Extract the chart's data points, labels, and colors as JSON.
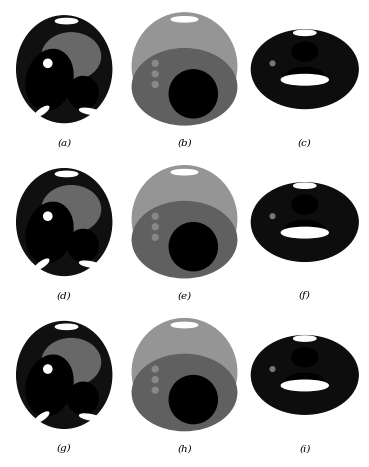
{
  "labels": [
    "(a)",
    "(b)",
    "(c)",
    "(d)",
    "(e)",
    "(f)",
    "(g)",
    "(h)",
    "(i)"
  ],
  "nrows": 3,
  "ncols": 3,
  "fig_width": 3.69,
  "fig_height": 4.67,
  "label_fontsize": 7.5,
  "label_color": "black",
  "outer_bg": "white",
  "cell_bg": "black"
}
